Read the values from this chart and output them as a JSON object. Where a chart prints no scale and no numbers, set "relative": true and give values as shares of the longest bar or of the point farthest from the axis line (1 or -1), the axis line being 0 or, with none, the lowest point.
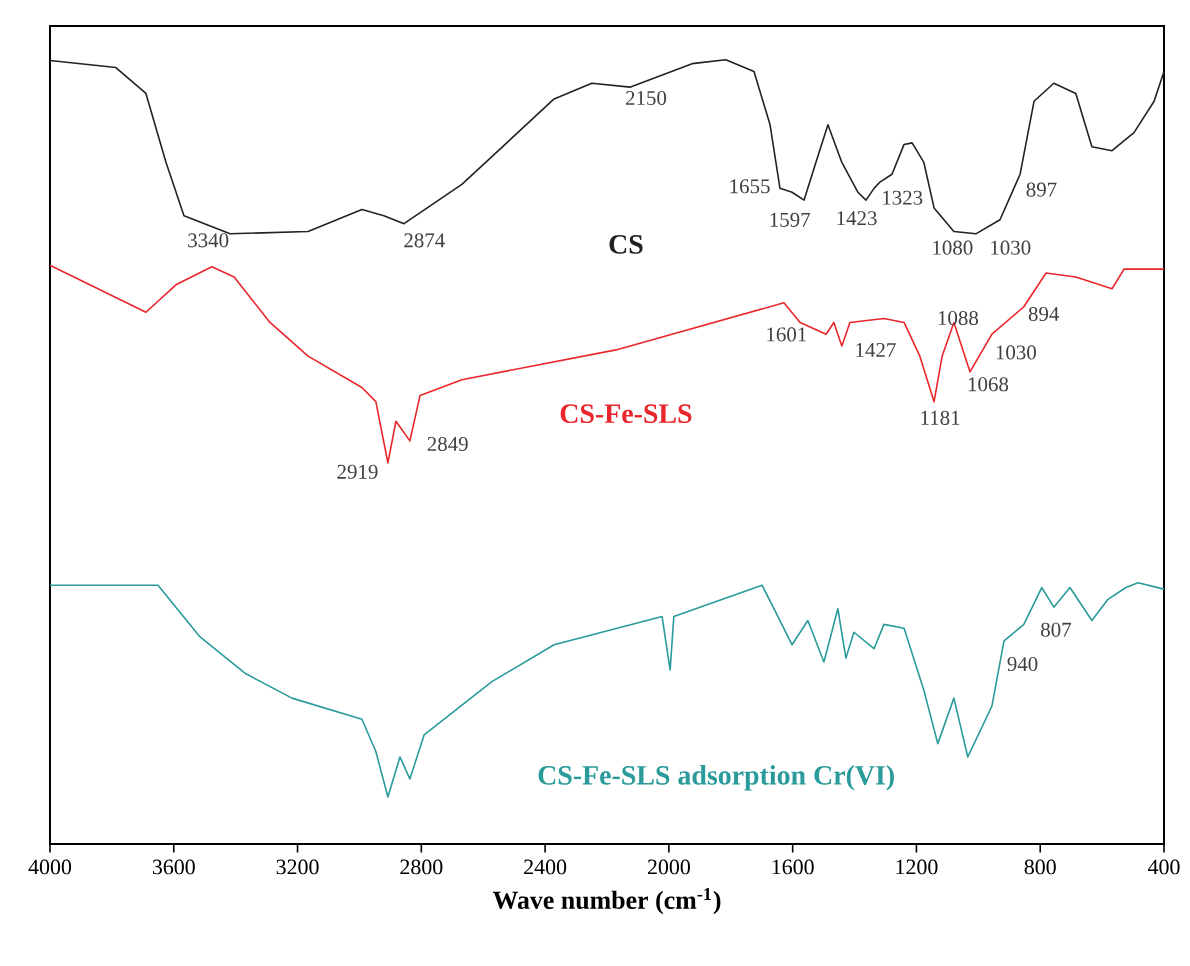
{
  "chart_data": {
    "type": "line",
    "relative": true,
    "xlabel": "Wave number (cm$^{-1}$)",
    "xlim": [
      4000,
      400
    ],
    "xticks": [
      4000,
      3600,
      3200,
      2800,
      2400,
      2000,
      1600,
      1200,
      800,
      400
    ],
    "series": [
      {
        "name": "CS",
        "color": "#222222",
        "x": [
          4000,
          3787,
          3690,
          3625,
          3567,
          3418,
          3166,
          2992,
          2921,
          2856,
          2669,
          2371,
          2249,
          2126,
          1925,
          1816,
          1725,
          1673,
          1641,
          1602,
          1563,
          1525,
          1486,
          1441,
          1389,
          1363,
          1337,
          1318,
          1279,
          1240,
          1214,
          1176,
          1143,
          1079,
          1008,
          930,
          865,
          820,
          756,
          685,
          633,
          568,
          497,
          432,
          400
        ],
        "values": [
          0.999,
          0.99,
          0.957,
          0.869,
          0.801,
          0.778,
          0.781,
          0.809,
          0.801,
          0.791,
          0.841,
          0.95,
          0.97,
          0.965,
          0.995,
          1.0,
          0.985,
          0.917,
          0.836,
          0.831,
          0.821,
          0.869,
          0.917,
          0.869,
          0.831,
          0.821,
          0.836,
          0.844,
          0.854,
          0.892,
          0.894,
          0.869,
          0.811,
          0.781,
          0.778,
          0.796,
          0.854,
          0.947,
          0.97,
          0.957,
          0.889,
          0.884,
          0.907,
          0.947,
          0.985
        ]
      },
      {
        "name": "CS-Fe-SLS",
        "color": "#e8262b",
        "x": [
          4000,
          3690,
          3593,
          3477,
          3405,
          3289,
          3166,
          2992,
          2947,
          2908,
          2882,
          2837,
          2804,
          2669,
          2171,
          1628,
          1576,
          1492,
          1467,
          1441,
          1415,
          1305,
          1240,
          1189,
          1143,
          1117,
          1079,
          1027,
          956,
          853,
          781,
          685,
          568,
          529,
          400
        ],
        "values": [
          0.738,
          0.678,
          0.713,
          0.736,
          0.723,
          0.665,
          0.622,
          0.582,
          0.564,
          0.486,
          0.539,
          0.514,
          0.572,
          0.592,
          0.63,
          0.69,
          0.665,
          0.65,
          0.665,
          0.635,
          0.665,
          0.67,
          0.665,
          0.622,
          0.564,
          0.622,
          0.665,
          0.602,
          0.65,
          0.685,
          0.728,
          0.723,
          0.708,
          0.733,
          0.733
        ]
      },
      {
        "name": "CS-Fe-SLS adsorption Cr(VI)",
        "color": "#2a9a9a",
        "x": [
          4000,
          3651,
          3515,
          3367,
          3218,
          2992,
          2947,
          2908,
          2869,
          2837,
          2791,
          2572,
          2371,
          2022,
          1996,
          1984,
          1699,
          1654,
          1602,
          1551,
          1499,
          1454,
          1428,
          1402,
          1337,
          1305,
          1240,
          1176,
          1131,
          1079,
          1034,
          956,
          917,
          853,
          795,
          756,
          704,
          633,
          581,
          523,
          484,
          400
        ],
        "values": [
          0.33,
          0.33,
          0.264,
          0.217,
          0.186,
          0.159,
          0.118,
          0.06,
          0.111,
          0.083,
          0.139,
          0.207,
          0.254,
          0.29,
          0.222,
          0.29,
          0.33,
          0.295,
          0.254,
          0.285,
          0.232,
          0.3,
          0.237,
          0.27,
          0.249,
          0.28,
          0.275,
          0.196,
          0.128,
          0.186,
          0.111,
          0.176,
          0.259,
          0.28,
          0.327,
          0.302,
          0.327,
          0.285,
          0.312,
          0.327,
          0.333,
          0.325
        ]
      }
    ],
    "annotations": [
      "3340",
      "2874",
      "2150",
      "1655",
      "1597",
      "1423",
      "1323",
      "897",
      "1080",
      "1030",
      "1601",
      "1427",
      "1088",
      "894",
      "1030",
      "1068",
      "1181",
      "2919",
      "2849",
      "807",
      "940"
    ]
  }
}
